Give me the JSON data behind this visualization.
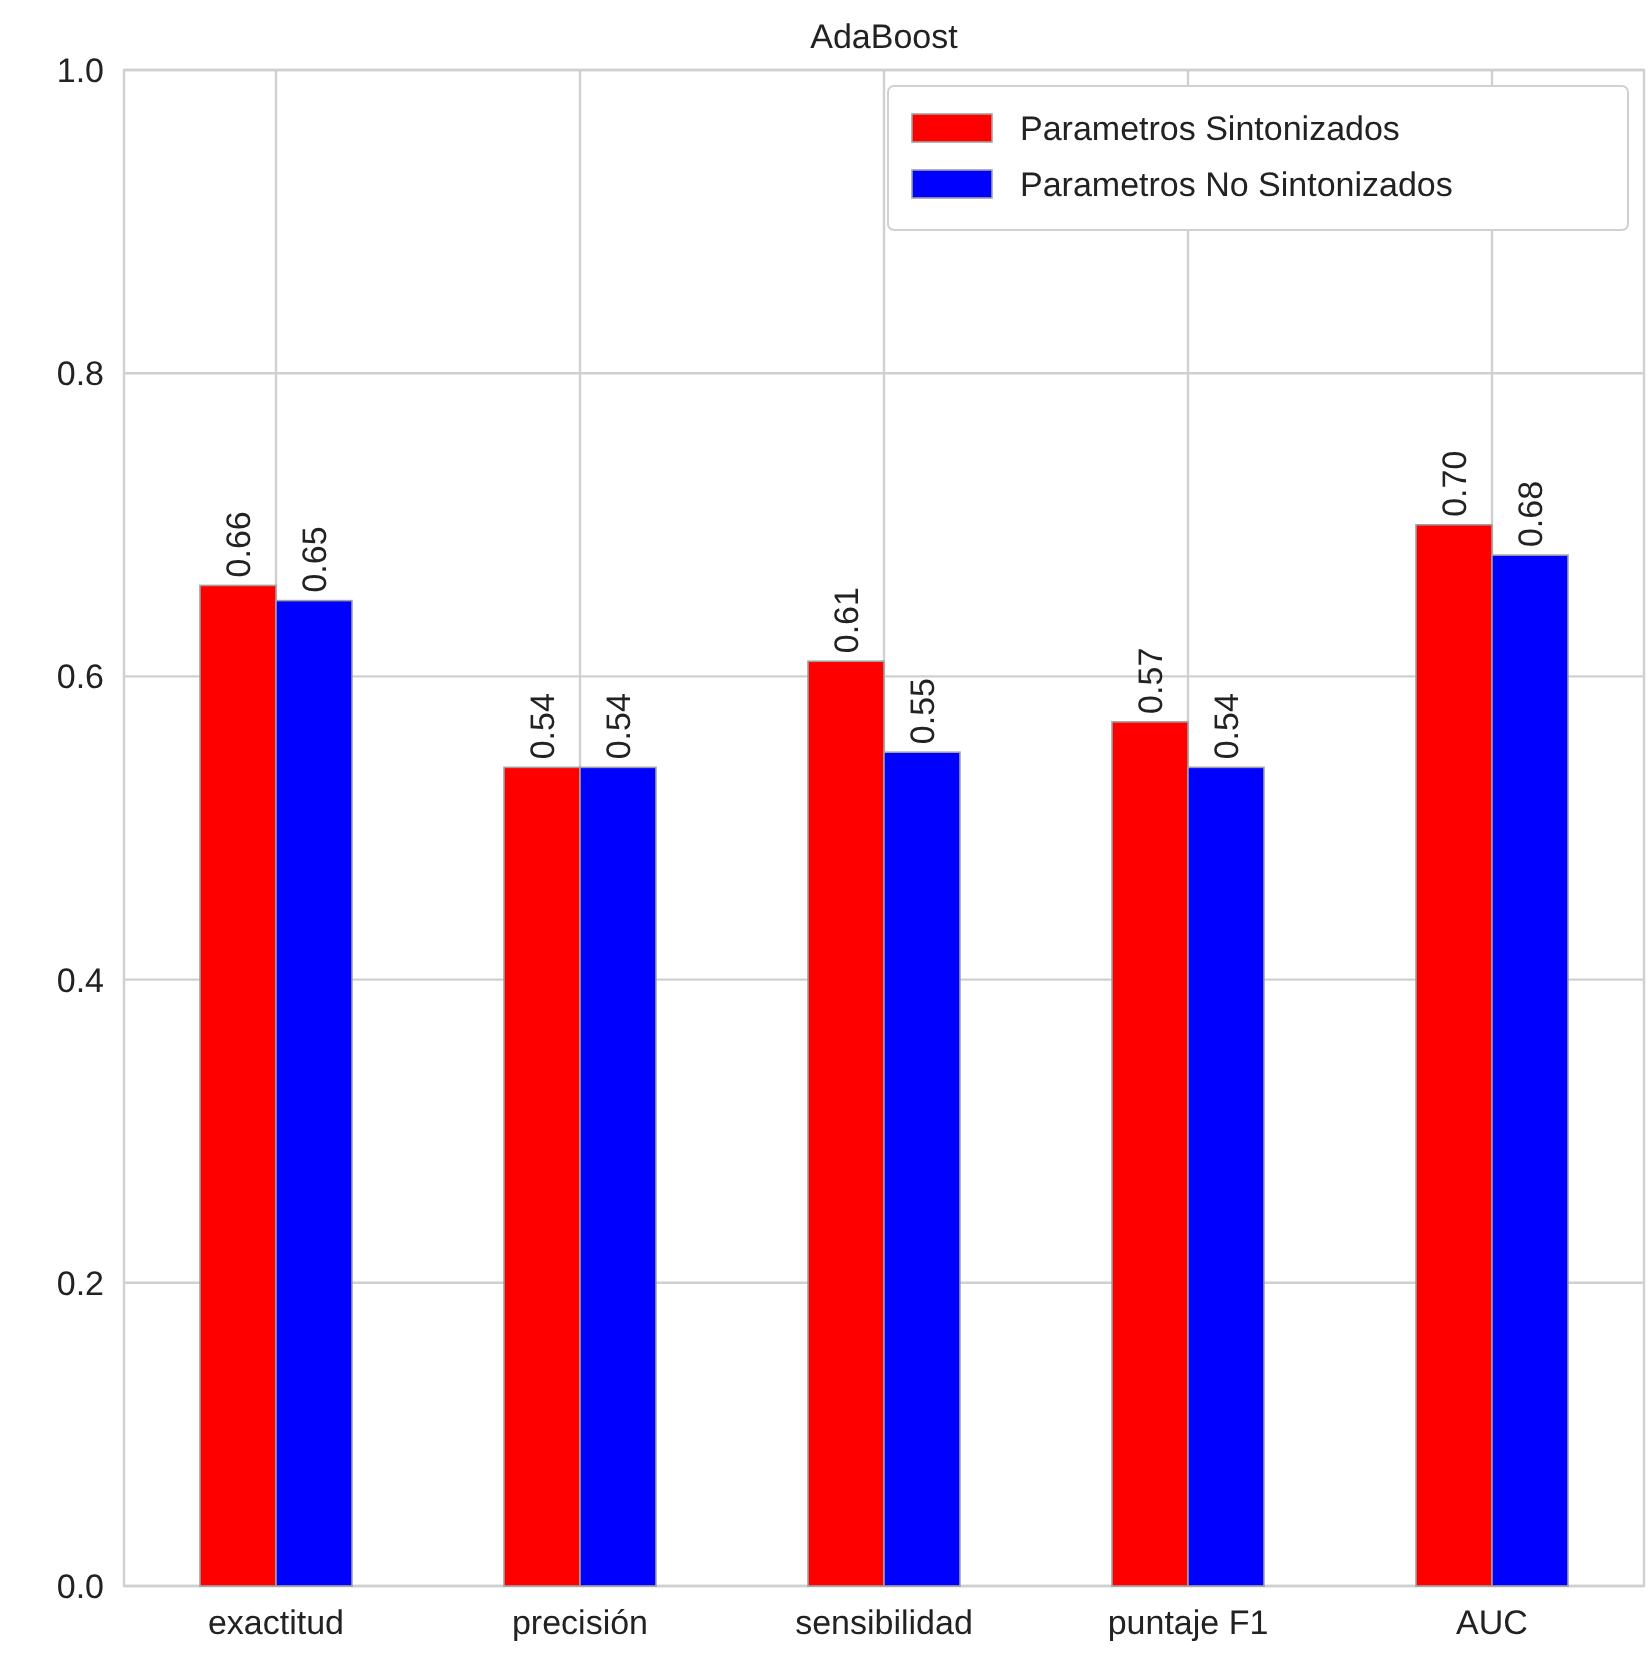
{
  "chart_data": {
    "type": "bar",
    "title": "AdaBoost",
    "categories": [
      "exactitud",
      "precisión",
      "sensibilidad",
      "puntaje F1",
      "AUC"
    ],
    "series": [
      {
        "name": "Parametros Sintonizados",
        "color": "#ff0000",
        "values": [
          0.66,
          0.54,
          0.61,
          0.57,
          0.7
        ]
      },
      {
        "name": "Parametros No Sintonizados",
        "color": "#0000ff",
        "values": [
          0.65,
          0.54,
          0.55,
          0.54,
          0.68
        ]
      }
    ],
    "value_labels": [
      [
        "0.66",
        "0.54",
        "0.61",
        "0.57",
        "0.70"
      ],
      [
        "0.65",
        "0.54",
        "0.55",
        "0.54",
        "0.68"
      ]
    ],
    "ylim": [
      0,
      1
    ],
    "yticks": [
      {
        "value": 0,
        "label": "0.0"
      },
      {
        "value": 0.2,
        "label": "0.2"
      },
      {
        "value": 0.4,
        "label": "0.4"
      },
      {
        "value": 0.6,
        "label": "0.6"
      },
      {
        "value": 0.8,
        "label": "0.8"
      },
      {
        "value": 1,
        "label": "1.0"
      }
    ],
    "grid": true,
    "legend": "top right"
  }
}
